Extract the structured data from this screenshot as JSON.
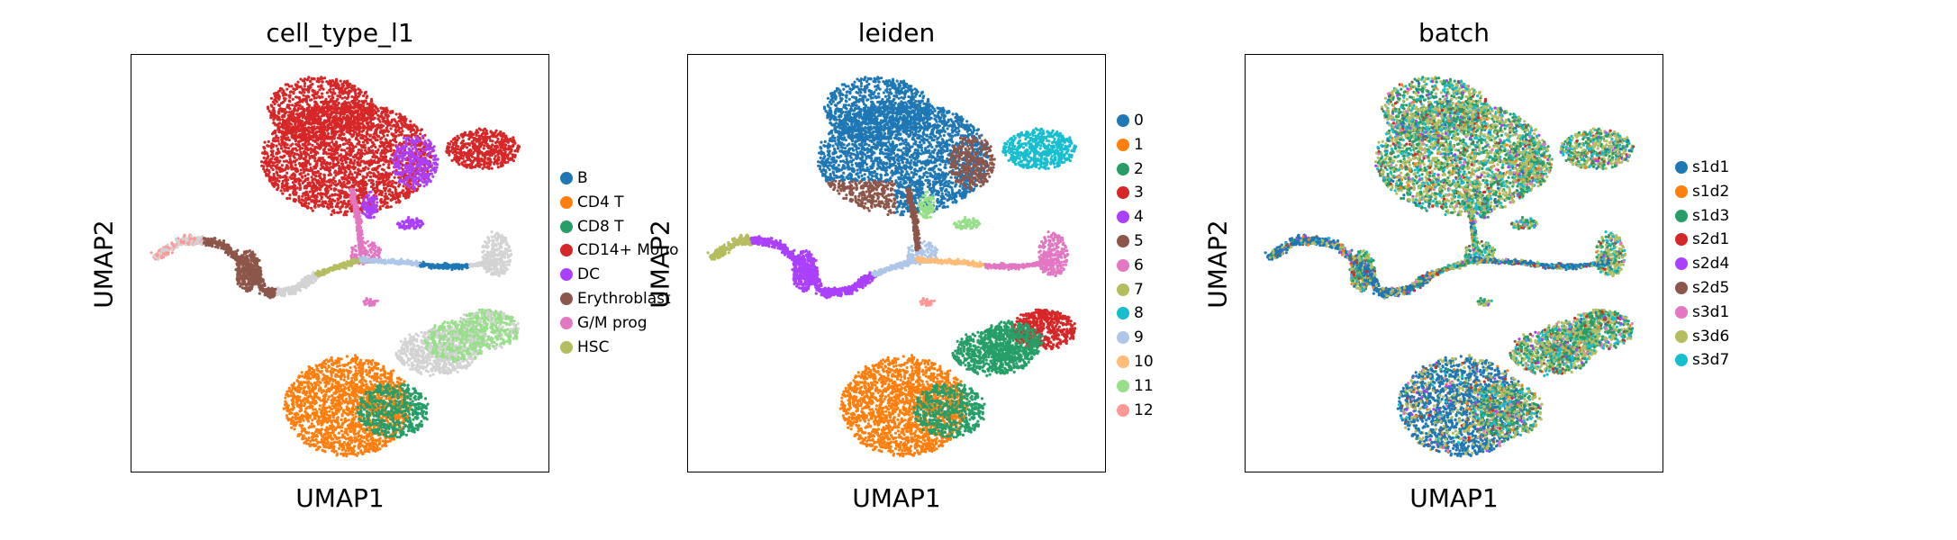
{
  "chart_data": [
    {
      "type": "scatter",
      "title": "cell_type_l1",
      "xlabel": "UMAP1",
      "ylabel": "UMAP2",
      "legend_position": "right",
      "grid": false,
      "series": [
        {
          "name": "B",
          "color": "#1f77b4"
        },
        {
          "name": "CD4 T",
          "color": "#ff7f0e"
        },
        {
          "name": "CD8 T",
          "color": "#279e68"
        },
        {
          "name": "CD14+ Mono",
          "color": "#d62728"
        },
        {
          "name": "DC",
          "color": "#aa40fc"
        },
        {
          "name": "Erythroblast",
          "color": "#8c564b"
        },
        {
          "name": "G/M prog",
          "color": "#e377c2"
        },
        {
          "name": "HSC",
          "color": "#b5bd61"
        }
      ]
    },
    {
      "type": "scatter",
      "title": "leiden",
      "xlabel": "UMAP1",
      "ylabel": "UMAP2",
      "legend_position": "right",
      "grid": false,
      "series": [
        {
          "name": "0",
          "color": "#1f77b4"
        },
        {
          "name": "1",
          "color": "#ff7f0e"
        },
        {
          "name": "2",
          "color": "#279e68"
        },
        {
          "name": "3",
          "color": "#d62728"
        },
        {
          "name": "4",
          "color": "#aa40fc"
        },
        {
          "name": "5",
          "color": "#8c564b"
        },
        {
          "name": "6",
          "color": "#e377c2"
        },
        {
          "name": "7",
          "color": "#b5bd61"
        },
        {
          "name": "8",
          "color": "#17becf"
        },
        {
          "name": "9",
          "color": "#aec7e8"
        },
        {
          "name": "10",
          "color": "#ffbb78"
        },
        {
          "name": "11",
          "color": "#98df8a"
        },
        {
          "name": "12",
          "color": "#ff9896"
        }
      ]
    },
    {
      "type": "scatter",
      "title": "batch",
      "xlabel": "UMAP1",
      "ylabel": "UMAP2",
      "legend_position": "right",
      "grid": false,
      "series": [
        {
          "name": "s1d1",
          "color": "#1f77b4"
        },
        {
          "name": "s1d2",
          "color": "#ff7f0e"
        },
        {
          "name": "s1d3",
          "color": "#279e68"
        },
        {
          "name": "s2d1",
          "color": "#d62728"
        },
        {
          "name": "s2d4",
          "color": "#aa40fc"
        },
        {
          "name": "s2d5",
          "color": "#8c564b"
        },
        {
          "name": "s3d1",
          "color": "#e377c2"
        },
        {
          "name": "s3d6",
          "color": "#b5bd61"
        },
        {
          "name": "s3d7",
          "color": "#17becf"
        }
      ]
    }
  ]
}
